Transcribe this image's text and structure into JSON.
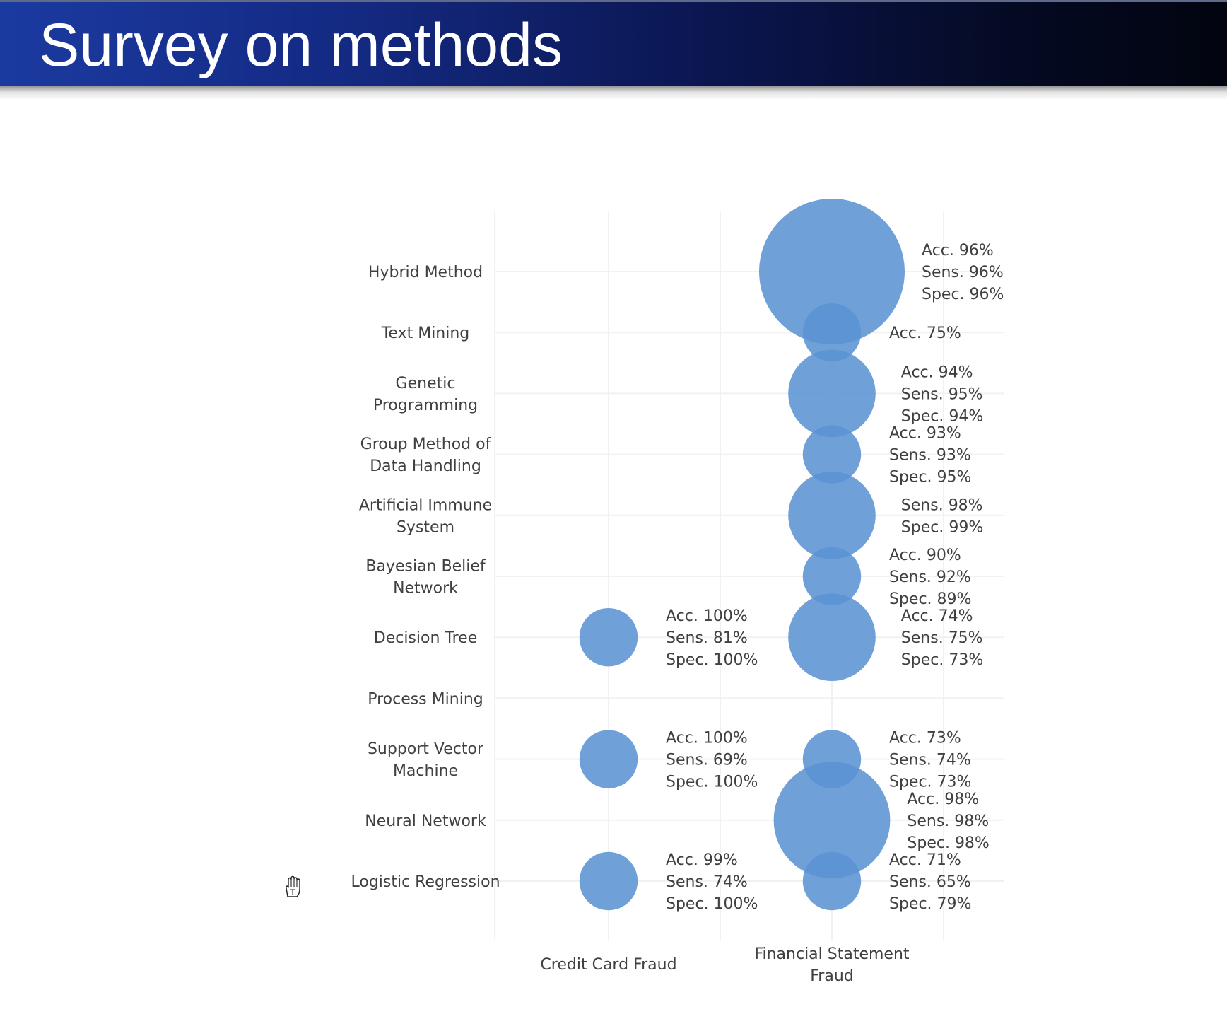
{
  "slide": {
    "title": "Survey on methods"
  },
  "icons": {
    "cursor": "hand-cursor-icon"
  },
  "colors": {
    "bubble": "#5b93d3",
    "title_bar_start": "#1b3aa0",
    "title_bar_end": "#02040f",
    "label_text": "#404040"
  },
  "chart_data": {
    "type": "bubble",
    "title": "",
    "xlabel": "",
    "ylabel": "",
    "categories_x": [
      "Credit Card Fraud",
      "Financial Statement Fraud"
    ],
    "categories_y": [
      "Hybrid Method",
      "Text Mining",
      "Genetic Programming",
      "Group Method of Data Handling",
      "Artificial Immune System",
      "Bayesian Belief Network",
      "Decision Tree",
      "Process Mining",
      "Support Vector Machine",
      "Neural Network",
      "Logistic Regression"
    ],
    "grid": true,
    "points": [
      {
        "x": "Financial Statement Fraud",
        "y": "Hybrid Method",
        "size": 10,
        "labels": [
          "Acc. 96%",
          "Sens. 96%",
          "Spec. 96%"
        ]
      },
      {
        "x": "Financial Statement Fraud",
        "y": "Text Mining",
        "size": 4,
        "labels": [
          "Acc. 75%"
        ]
      },
      {
        "x": "Financial Statement Fraud",
        "y": "Genetic Programming",
        "size": 6,
        "labels": [
          "Acc. 94%",
          "Sens. 95%",
          "Spec. 94%"
        ]
      },
      {
        "x": "Financial Statement Fraud",
        "y": "Group Method of Data Handling",
        "size": 4,
        "labels": [
          "Acc. 93%",
          "Sens. 93%",
          "Spec. 95%"
        ]
      },
      {
        "x": "Financial Statement Fraud",
        "y": "Artificial Immune System",
        "size": 6,
        "labels": [
          "Sens. 98%",
          "Spec. 99%"
        ]
      },
      {
        "x": "Financial Statement Fraud",
        "y": "Bayesian Belief Network",
        "size": 4,
        "labels": [
          "Acc. 90%",
          "Sens. 92%",
          "Spec. 89%"
        ]
      },
      {
        "x": "Credit Card Fraud",
        "y": "Decision Tree",
        "size": 4,
        "labels": [
          "Acc. 100%",
          "Sens. 81%",
          "Spec. 100%"
        ]
      },
      {
        "x": "Financial Statement Fraud",
        "y": "Decision Tree",
        "size": 6,
        "labels": [
          "Acc. 74%",
          "Sens. 75%",
          "Spec. 73%"
        ]
      },
      {
        "x": "Credit Card Fraud",
        "y": "Support Vector Machine",
        "size": 4,
        "labels": [
          "Acc. 100%",
          "Sens. 69%",
          "Spec. 100%"
        ]
      },
      {
        "x": "Financial Statement Fraud",
        "y": "Support Vector Machine",
        "size": 4,
        "labels": [
          "Acc. 73%",
          "Sens. 74%",
          "Spec. 73%"
        ]
      },
      {
        "x": "Financial Statement Fraud",
        "y": "Neural Network",
        "size": 8,
        "labels": [
          "Acc. 98%",
          "Sens. 98%",
          "Spec. 98%"
        ]
      },
      {
        "x": "Credit Card Fraud",
        "y": "Logistic Regression",
        "size": 4,
        "labels": [
          "Acc. 99%",
          "Sens. 74%",
          "Spec. 100%"
        ]
      },
      {
        "x": "Financial Statement Fraud",
        "y": "Logistic Regression",
        "size": 4,
        "labels": [
          "Acc. 71%",
          "Sens. 65%",
          "Spec. 79%"
        ]
      }
    ]
  }
}
